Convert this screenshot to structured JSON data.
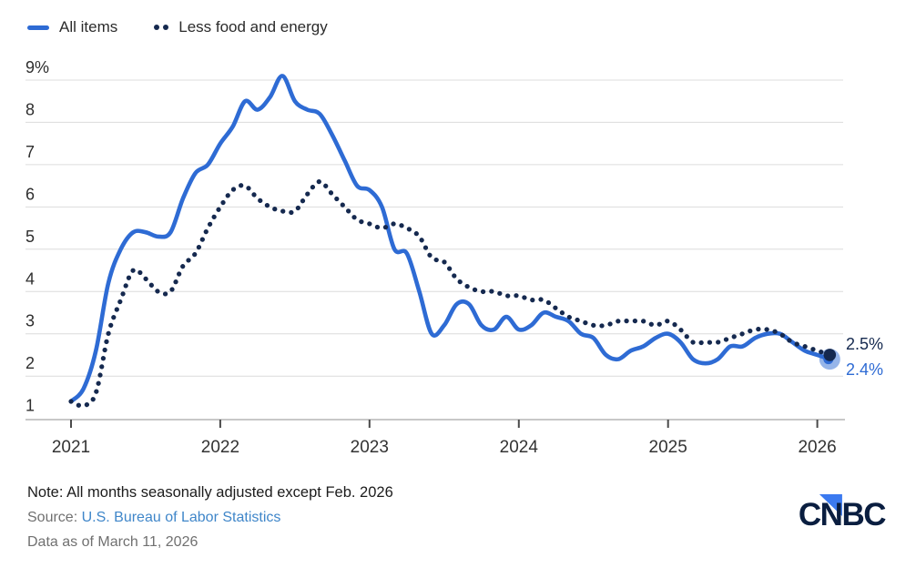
{
  "legend": {
    "items": [
      {
        "label": "All items",
        "marker": "line"
      },
      {
        "label": "Less food and energy",
        "marker": "dots"
      }
    ]
  },
  "chart_data": {
    "type": "line",
    "title": "",
    "x_tick_labels": [
      "2021",
      "2022",
      "2023",
      "2024",
      "2025",
      "2026"
    ],
    "y_tick_labels": [
      "9%",
      "8",
      "7",
      "6",
      "5",
      "4",
      "3",
      "2",
      "1"
    ],
    "y_tick_values": [
      9,
      8,
      7,
      6,
      5,
      4,
      3,
      2,
      1
    ],
    "ylim": [
      1,
      9.5
    ],
    "grid": "horizontal",
    "legend_position": "top-left",
    "months_start": "Jan 2021",
    "months_end": "Feb 2026",
    "series": [
      {
        "name": "All items",
        "color": "#2e6bd4",
        "style": "solid",
        "values": [
          1.4,
          1.7,
          2.6,
          4.2,
          5.0,
          5.4,
          5.4,
          5.3,
          5.4,
          6.2,
          6.8,
          7.0,
          7.5,
          7.9,
          8.5,
          8.3,
          8.6,
          9.1,
          8.5,
          8.3,
          8.2,
          7.7,
          7.1,
          6.5,
          6.4,
          6.0,
          5.0,
          4.9,
          4.0,
          3.0,
          3.2,
          3.7,
          3.7,
          3.2,
          3.1,
          3.4,
          3.1,
          3.2,
          3.5,
          3.4,
          3.3,
          3.0,
          2.9,
          2.5,
          2.4,
          2.6,
          2.7,
          2.9,
          3.0,
          2.8,
          2.4,
          2.3,
          2.4,
          2.7,
          2.7,
          2.9,
          3.0,
          3.0,
          2.8,
          2.6,
          2.5,
          2.4
        ]
      },
      {
        "name": "Less food and energy",
        "color": "#15294f",
        "style": "dotted",
        "values": [
          1.4,
          1.3,
          1.6,
          3.0,
          3.8,
          4.5,
          4.3,
          4.0,
          4.0,
          4.6,
          4.9,
          5.5,
          6.0,
          6.4,
          6.5,
          6.2,
          6.0,
          5.9,
          5.9,
          6.3,
          6.6,
          6.3,
          6.0,
          5.7,
          5.6,
          5.5,
          5.6,
          5.5,
          5.3,
          4.8,
          4.7,
          4.3,
          4.1,
          4.0,
          4.0,
          3.9,
          3.9,
          3.8,
          3.8,
          3.6,
          3.4,
          3.3,
          3.2,
          3.2,
          3.3,
          3.3,
          3.3,
          3.2,
          3.3,
          3.1,
          2.8,
          2.8,
          2.8,
          2.9,
          3.0,
          3.1,
          3.1,
          3.0,
          2.8,
          2.7,
          2.6,
          2.5
        ]
      }
    ],
    "end_labels": [
      {
        "text": "2.5%",
        "series": "Less food and energy",
        "color": "#15294f"
      },
      {
        "text": "2.4%",
        "series": "All items",
        "color": "#2e6bd4"
      }
    ]
  },
  "footer": {
    "note": "Note: All months seasonally adjusted except Feb. 2026",
    "source_prefix": "Source: ",
    "source_link": "U.S. Bureau of Labor Statistics",
    "data_as_of": "Data as of March 11, 2026"
  },
  "logo": {
    "text": "CNBC"
  },
  "colors": {
    "all_items_blue": "#2e6bd4",
    "core_navy": "#15294f",
    "link_blue": "#3f86c9",
    "grid_gray": "#dcdcdc",
    "axis_gray": "#a8a8a8",
    "tick_text": "#333333",
    "logo_navy": "#0a1e40",
    "logo_triangle_blue": "#3b7af0"
  }
}
